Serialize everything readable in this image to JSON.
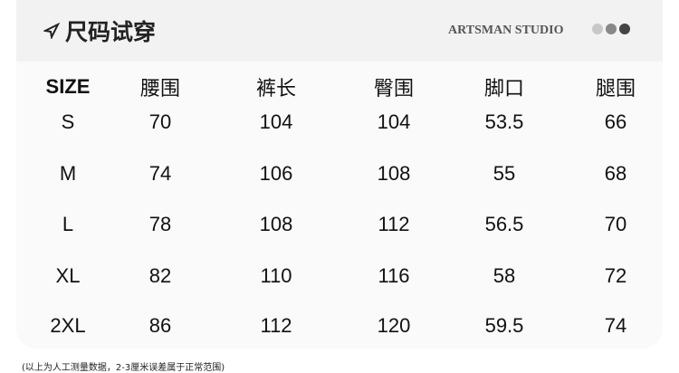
{
  "header": {
    "title": "尺码试穿",
    "brand": "ARTSMAN STUDIO",
    "dot_colors": [
      "#c8c8c8",
      "#888888",
      "#444444"
    ]
  },
  "table": {
    "columns": [
      "SIZE",
      "腰围",
      "裤长",
      "臀围",
      "脚口",
      "腿围"
    ],
    "rows": [
      [
        "S",
        "70",
        "104",
        "104",
        "53.5",
        "66"
      ],
      [
        "M",
        "74",
        "106",
        "108",
        "55",
        "68"
      ],
      [
        "L",
        "78",
        "108",
        "112",
        "56.5",
        "70"
      ],
      [
        "XL",
        "82",
        "110",
        "116",
        "58",
        "72"
      ],
      [
        "2XL",
        "86",
        "112",
        "120",
        "59.5",
        "74"
      ]
    ]
  },
  "note": "(以上为人工测量数据，2-3厘米误差属于正常范围)"
}
